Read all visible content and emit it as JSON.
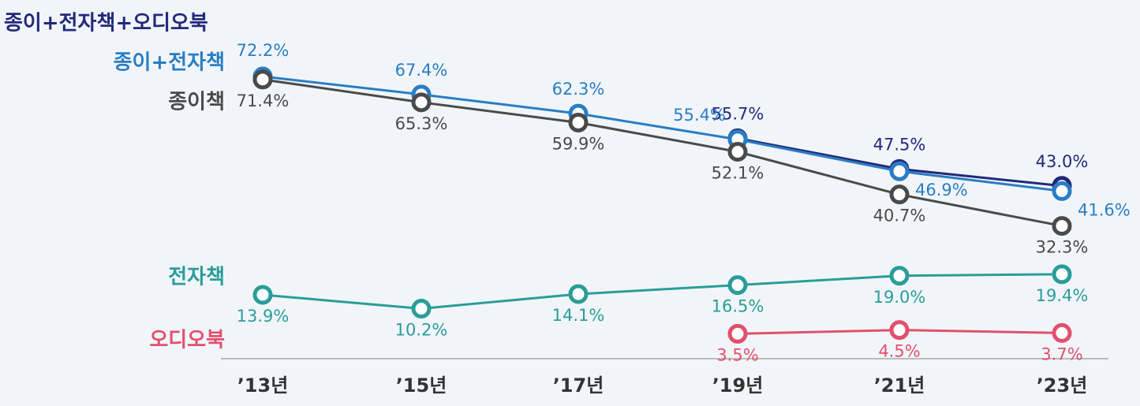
{
  "chart_data": {
    "type": "line",
    "categories": [
      "’13년",
      "’15년",
      "’17년",
      "’19년",
      "’21년",
      "’23년"
    ],
    "ylim": [
      0,
      80
    ],
    "series": [
      {
        "name": "종이+전자책+오디오북",
        "color": "#22297a",
        "values": [
          null,
          null,
          null,
          55.7,
          47.5,
          43.0
        ],
        "value_labels": [
          null,
          null,
          null,
          "55.7%",
          "47.5%",
          "43.0%"
        ]
      },
      {
        "name": "종이+전자책",
        "color": "#2a7dc4",
        "values": [
          72.2,
          67.4,
          62.3,
          55.4,
          46.9,
          41.6
        ],
        "value_labels": [
          "72.2%",
          "67.4%",
          "62.3%",
          "55.4%",
          "46.9%",
          "41.6%"
        ]
      },
      {
        "name": "종이책",
        "color": "#4a4a4a",
        "values": [
          71.4,
          65.3,
          59.9,
          52.1,
          40.7,
          32.3
        ],
        "value_labels": [
          "71.4%",
          "65.3%",
          "59.9%",
          "52.1%",
          "40.7%",
          "32.3%"
        ]
      },
      {
        "name": "전자책",
        "color": "#2a9d99",
        "values": [
          13.9,
          10.2,
          14.1,
          16.5,
          19.0,
          19.4
        ],
        "value_labels": [
          "13.9%",
          "10.2%",
          "14.1%",
          "16.5%",
          "19.0%",
          "19.4%"
        ]
      },
      {
        "name": "오디오북",
        "color": "#e2506d",
        "values": [
          null,
          null,
          null,
          3.5,
          4.5,
          3.7
        ],
        "value_labels": [
          null,
          null,
          null,
          "3.5%",
          "4.5%",
          "3.7%"
        ]
      }
    ]
  }
}
